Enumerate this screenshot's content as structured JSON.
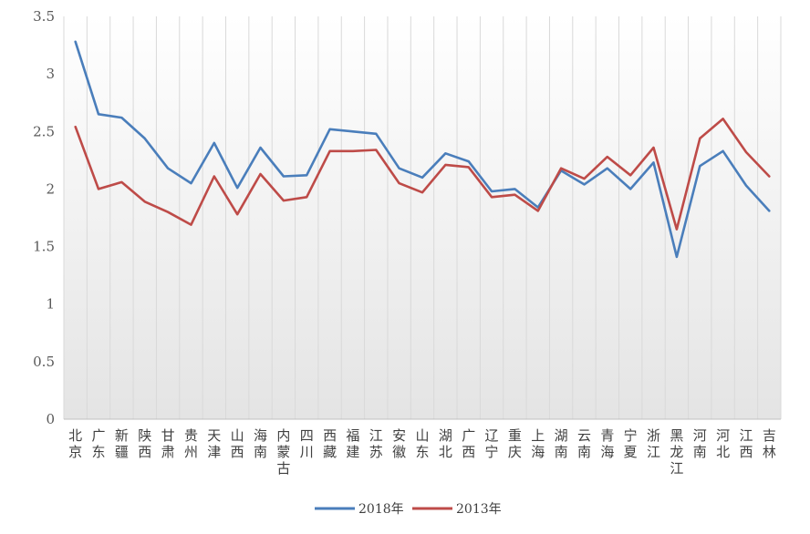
{
  "chart_data": {
    "type": "line",
    "title": "",
    "xlabel": "",
    "ylabel": "",
    "ylim": [
      0,
      3.5
    ],
    "yticks": [
      "0",
      "0.5",
      "1",
      "1.5",
      "2",
      "2.5",
      "3",
      "3.5"
    ],
    "grid": "vertical",
    "legend": "bottom",
    "categories": [
      "北京",
      "广东",
      "新疆",
      "陕西",
      "甘肃",
      "贵州",
      "天津",
      "山西",
      "海南",
      "内蒙古",
      "四川",
      "西藏",
      "福建",
      "江苏",
      "安徽",
      "山东",
      "湖北",
      "广西",
      "辽宁",
      "重庆",
      "上海",
      "湖南",
      "云南",
      "青海",
      "宁夏",
      "浙江",
      "黑龙江",
      "河南",
      "河北",
      "江西",
      "吉林"
    ],
    "series": [
      {
        "name": "2018年",
        "color": "#4a7ebb",
        "values": [
          3.28,
          2.65,
          2.62,
          2.44,
          2.18,
          2.05,
          2.4,
          2.01,
          2.36,
          2.11,
          2.12,
          2.52,
          2.5,
          2.48,
          2.18,
          2.1,
          2.31,
          2.24,
          1.98,
          2.0,
          1.84,
          2.16,
          2.04,
          2.18,
          2.0,
          2.23,
          1.41,
          2.2,
          2.33,
          2.03,
          1.81
        ]
      },
      {
        "name": "2013年",
        "color": "#be4b48",
        "values": [
          2.54,
          2.0,
          2.06,
          1.89,
          1.8,
          1.69,
          2.11,
          1.78,
          2.13,
          1.9,
          1.93,
          2.33,
          2.33,
          2.34,
          2.05,
          1.97,
          2.21,
          2.19,
          1.93,
          1.95,
          1.81,
          2.18,
          2.09,
          2.28,
          2.12,
          2.36,
          1.65,
          2.44,
          2.61,
          2.32,
          2.11
        ]
      }
    ]
  }
}
